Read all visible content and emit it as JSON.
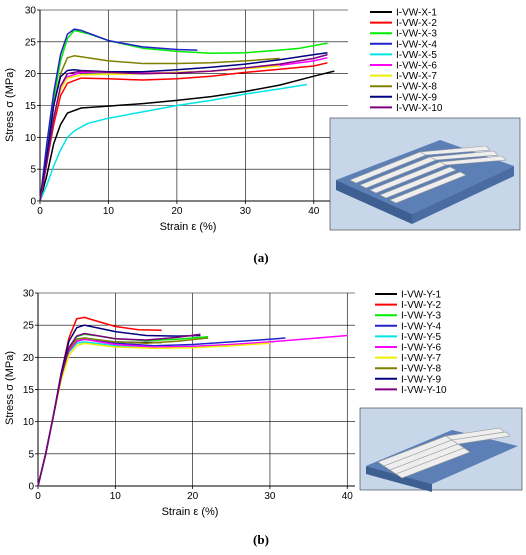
{
  "chart_data": [
    {
      "type": "line",
      "caption": "(a)",
      "xlabel": "Strain ε (%)",
      "ylabel": "Stress σ (MPa)",
      "xlim": [
        0,
        45
      ],
      "ylim": [
        0,
        30
      ],
      "xticks": [
        "0",
        "10",
        "20",
        "30",
        "40"
      ],
      "yticks": [
        "0",
        "5",
        "10",
        "15",
        "20",
        "25",
        "30"
      ],
      "grid": true,
      "legend_position": "right",
      "inset": "3D render of specimen set with filaments along X",
      "series": [
        {
          "name": "I-VW-X-1",
          "color": "#000000",
          "x": [
            0,
            1,
            2,
            3,
            4,
            6,
            10,
            15,
            20,
            25,
            30,
            35,
            40,
            43
          ],
          "y": [
            0,
            4,
            9,
            12,
            13.8,
            14.6,
            14.9,
            15.3,
            15.8,
            16.4,
            17.2,
            18.2,
            19.6,
            20.4
          ]
        },
        {
          "name": "I-VW-X-2",
          "color": "#ff0000",
          "x": [
            0,
            1,
            2,
            3,
            4,
            6,
            10,
            15,
            20,
            25,
            30,
            35,
            40,
            42
          ],
          "y": [
            0,
            6,
            12,
            16.5,
            18.5,
            19.3,
            19.2,
            19,
            19.2,
            19.6,
            20.2,
            20.7,
            21.2,
            21.7
          ]
        },
        {
          "name": "I-VW-X-3",
          "color": "#00ee00",
          "x": [
            0,
            1,
            2,
            3,
            4,
            5,
            7,
            10,
            15,
            20,
            25,
            30,
            35,
            38,
            42
          ],
          "y": [
            0,
            8,
            16,
            22,
            25.5,
            26.8,
            26.3,
            25.2,
            24,
            23.5,
            23.2,
            23.3,
            23.7,
            24,
            24.8
          ]
        },
        {
          "name": "I-VW-X-4",
          "color": "#2222cc",
          "x": [
            0,
            1,
            2,
            3,
            4,
            5,
            6,
            8,
            10,
            15,
            20,
            23
          ],
          "y": [
            0,
            9,
            17,
            23,
            26.2,
            27,
            26.8,
            26,
            25.2,
            24.2,
            23.8,
            23.7
          ]
        },
        {
          "name": "I-VW-X-5",
          "color": "#00e5e5",
          "x": [
            0,
            1,
            2,
            3,
            4,
            5,
            7,
            10,
            15,
            20,
            25,
            30,
            35,
            39
          ],
          "y": [
            0,
            2.5,
            5.5,
            8,
            10,
            11,
            12.2,
            13,
            14,
            15,
            15.8,
            16.8,
            17.6,
            18.3
          ]
        },
        {
          "name": "I-VW-X-6",
          "color": "#ff00ff",
          "x": [
            0,
            1,
            2,
            3,
            4,
            6,
            10,
            15,
            20,
            25,
            30,
            35,
            40,
            42
          ],
          "y": [
            0,
            6,
            13,
            17.5,
            19.5,
            20.2,
            20.3,
            20.1,
            20.2,
            20.4,
            20.8,
            21.3,
            22,
            22.5
          ]
        },
        {
          "name": "I-VW-X-7",
          "color": "#eeee00",
          "x": [
            0,
            1,
            2,
            3,
            4,
            6,
            10,
            15,
            20,
            25,
            30,
            35
          ],
          "y": [
            0,
            6,
            13,
            17.5,
            19.3,
            19.8,
            19.9,
            20,
            20.2,
            20.4,
            20.8,
            21.2
          ]
        },
        {
          "name": "I-VW-X-8",
          "color": "#808000",
          "x": [
            0,
            1,
            2,
            3,
            4,
            5,
            7,
            10,
            15,
            20,
            25,
            30,
            35
          ],
          "y": [
            0,
            7,
            15,
            20,
            22.5,
            22.8,
            22.5,
            22,
            21.6,
            21.6,
            21.7,
            22,
            22.4
          ]
        },
        {
          "name": "I-VW-X-9",
          "color": "#000080",
          "x": [
            0,
            1,
            2,
            3,
            4,
            5,
            6,
            10,
            15,
            20,
            25,
            30,
            35,
            40,
            42
          ],
          "y": [
            0,
            7,
            15,
            19.5,
            20.5,
            20.6,
            20.5,
            20.3,
            20.3,
            20.6,
            21,
            21.5,
            22.2,
            23,
            23.3
          ]
        },
        {
          "name": "I-VW-X-10",
          "color": "#800080",
          "x": [
            0,
            1,
            2,
            3,
            4,
            6,
            10,
            15,
            20,
            25,
            30,
            35,
            40,
            42
          ],
          "y": [
            0,
            6,
            13,
            18,
            20,
            20.4,
            20.2,
            20,
            20.1,
            20.4,
            20.9,
            21.5,
            22.4,
            23
          ]
        }
      ]
    },
    {
      "type": "line",
      "caption": "(b)",
      "xlabel": "Strain ε (%)",
      "ylabel": "Stress σ (MPa)",
      "xlim": [
        0,
        41
      ],
      "ylim": [
        0,
        30
      ],
      "xticks": [
        "0",
        "10",
        "20",
        "30",
        "40"
      ],
      "yticks": [
        "0",
        "5",
        "10",
        "15",
        "20",
        "25",
        "30"
      ],
      "grid": true,
      "legend_position": "right",
      "inset": "3D render of specimen set with filaments along Y",
      "series": [
        {
          "name": "I-VW-Y-1",
          "color": "#000000",
          "x": [
            0,
            1,
            2,
            3,
            4,
            5,
            6,
            8,
            10,
            13,
            16
          ],
          "y": [
            0,
            5,
            11,
            17,
            21,
            22.5,
            22.8,
            22.6,
            22.4,
            22.3,
            22.3
          ]
        },
        {
          "name": "I-VW-Y-2",
          "color": "#ff0000",
          "x": [
            0,
            1,
            2,
            3,
            4,
            5,
            6,
            8,
            10,
            13,
            16
          ],
          "y": [
            0,
            5,
            11,
            17.5,
            23,
            26,
            26.2,
            25.5,
            24.8,
            24.3,
            24.2
          ]
        },
        {
          "name": "I-VW-Y-3",
          "color": "#00ee00",
          "x": [
            0,
            1,
            2,
            3,
            4,
            5,
            6,
            8,
            10,
            14,
            18,
            22
          ],
          "y": [
            0,
            5,
            11,
            17,
            21.5,
            23.2,
            23.6,
            23.3,
            22.9,
            22.6,
            22.8,
            23.2
          ]
        },
        {
          "name": "I-VW-Y-4",
          "color": "#2222cc",
          "x": [
            0,
            1,
            2,
            3,
            4,
            5,
            6,
            8,
            10,
            15,
            20,
            25,
            30,
            32
          ],
          "y": [
            0,
            5,
            11,
            17,
            21,
            22.8,
            23,
            22.6,
            22.2,
            21.8,
            22,
            22.4,
            22.8,
            23
          ]
        },
        {
          "name": "I-VW-Y-5",
          "color": "#00e5e5",
          "x": [
            0,
            1,
            2,
            3,
            4,
            5,
            6,
            8,
            10,
            15,
            20,
            25,
            28
          ],
          "y": [
            0,
            5,
            11,
            17,
            20.8,
            22.2,
            22.4,
            22.1,
            21.8,
            21.6,
            21.7,
            22,
            22.2
          ]
        },
        {
          "name": "I-VW-Y-6",
          "color": "#ff00ff",
          "x": [
            0,
            1,
            2,
            3,
            4,
            5,
            6,
            8,
            10,
            15,
            20,
            25,
            30,
            35,
            40
          ],
          "y": [
            0,
            5,
            11,
            17,
            21,
            22.5,
            22.8,
            22.4,
            22,
            21.6,
            21.7,
            22,
            22.4,
            22.9,
            23.4
          ]
        },
        {
          "name": "I-VW-Y-7",
          "color": "#eeee00",
          "x": [
            0,
            1,
            2,
            3,
            4,
            5,
            6,
            8,
            10,
            15,
            20,
            25,
            30
          ],
          "y": [
            0,
            5,
            11,
            16.5,
            20.3,
            21.8,
            22.2,
            21.9,
            21.6,
            21.4,
            21.5,
            21.8,
            22.2
          ]
        },
        {
          "name": "I-VW-Y-8",
          "color": "#808000",
          "x": [
            0,
            1,
            2,
            3,
            4,
            5,
            6,
            8,
            10,
            14,
            18,
            22
          ],
          "y": [
            0,
            5,
            11,
            17,
            21.3,
            22.8,
            23,
            22.7,
            22.4,
            22.2,
            22.5,
            23
          ]
        },
        {
          "name": "I-VW-Y-9",
          "color": "#000080",
          "x": [
            0,
            1,
            2,
            3,
            4,
            5,
            6,
            8,
            10,
            14,
            18,
            21
          ],
          "y": [
            0,
            5,
            11,
            17.5,
            22.5,
            24.6,
            25,
            24.5,
            24,
            23.4,
            23.3,
            23.4
          ]
        },
        {
          "name": "I-VW-Y-10",
          "color": "#800080",
          "x": [
            0,
            1,
            2,
            3,
            4,
            5,
            6,
            8,
            10,
            14,
            18,
            21
          ],
          "y": [
            0,
            5,
            11,
            17,
            21.5,
            23.3,
            23.7,
            23.3,
            22.9,
            22.7,
            23.1,
            23.6
          ]
        }
      ]
    }
  ]
}
